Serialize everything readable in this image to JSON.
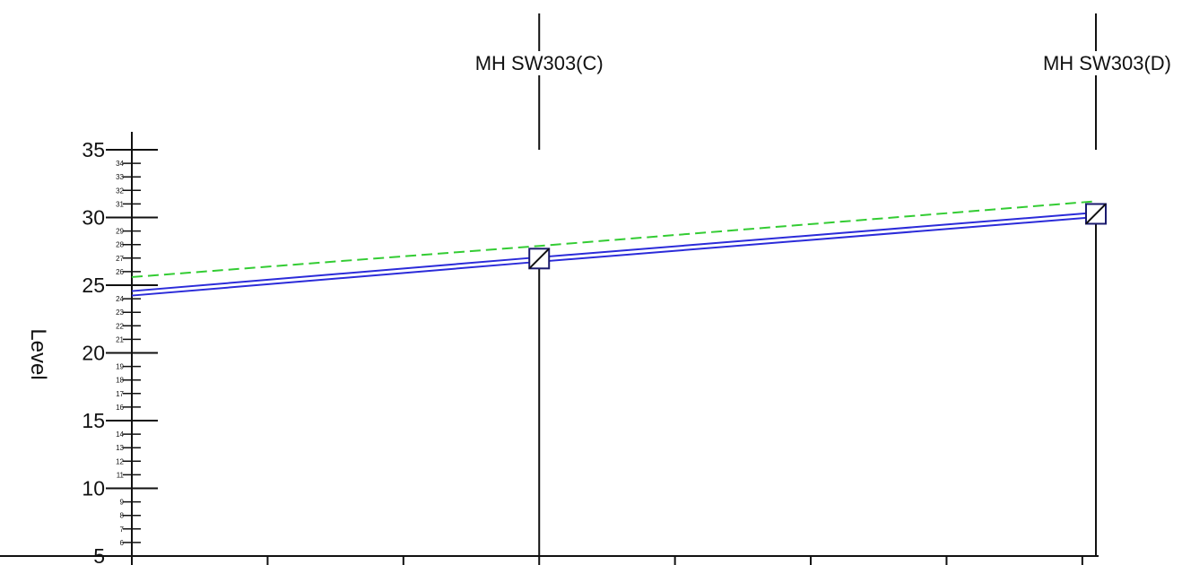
{
  "chart_data": {
    "type": "line",
    "ylabel": "Level",
    "ylim": [
      5,
      35
    ],
    "yticks_major": [
      5,
      10,
      15,
      20,
      25,
      30,
      35
    ],
    "yticks_minor": [
      6,
      7,
      8,
      9,
      11,
      12,
      13,
      14,
      16,
      17,
      18,
      19,
      21,
      22,
      23,
      24,
      26,
      27,
      28,
      29,
      31,
      32,
      33,
      34
    ],
    "xlim": [
      0,
      71
    ],
    "xticks": [
      0,
      10,
      20,
      30,
      40,
      50,
      60,
      70
    ],
    "nodes": [
      {
        "label": "MH SW303(C)",
        "x": 30,
        "invert_level": 26.9,
        "ground_level": 27.9
      },
      {
        "label": "MH SW303(D)",
        "x": 71,
        "invert_level": 30.2,
        "ground_level": 31.2
      }
    ],
    "series": [
      {
        "line": "pipe",
        "color": "#2b2bd9",
        "x": [
          0,
          30,
          71
        ],
        "values": [
          24.4,
          26.9,
          30.2
        ]
      },
      {
        "line": "ground",
        "color": "#33cc33",
        "x": [
          0,
          30,
          71
        ],
        "values": [
          25.6,
          27.9,
          31.2
        ]
      }
    ]
  }
}
